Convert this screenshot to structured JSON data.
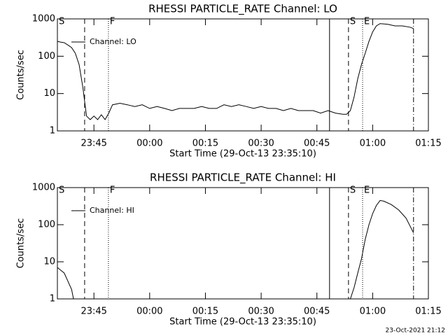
{
  "chart_data": [
    {
      "type": "line",
      "title": "RHESSI PARTICLE_RATE Channel: LO",
      "xlabel": "Start Time (29-Oct-13 23:35:10)",
      "ylabel": "Counts/sec",
      "log_y": true,
      "legend": "upper left",
      "xlim": [
        1415.17,
        1515
      ],
      "ylim": [
        1,
        1000
      ],
      "xticks": [
        {
          "value": 1425,
          "label": "23:45"
        },
        {
          "value": 1440,
          "label": "00:00"
        },
        {
          "value": 1455,
          "label": "00:15"
        },
        {
          "value": 1470,
          "label": "00:30"
        },
        {
          "value": 1485,
          "label": "00:45"
        },
        {
          "value": 1500,
          "label": "01:00"
        },
        {
          "value": 1515,
          "label": "01:15"
        }
      ],
      "yticks": [
        1,
        10,
        100,
        1000
      ],
      "markers": [
        {
          "x": 1415.17,
          "style": "solid",
          "label": "S"
        },
        {
          "x": 1422.5,
          "style": "dashed"
        },
        {
          "x": 1428.9,
          "style": "dotted",
          "label": "F"
        },
        {
          "x": 1488.4,
          "style": "solid"
        },
        {
          "x": 1493.5,
          "style": "dashed",
          "label": "S"
        },
        {
          "x": 1497.3,
          "style": "dotted",
          "label": "E"
        },
        {
          "x": 1511.0,
          "style": "dashdot"
        }
      ],
      "x": [
        1415.2,
        1416,
        1417,
        1418,
        1419,
        1420,
        1421,
        1422,
        1423,
        1424,
        1425,
        1426,
        1427,
        1428,
        1429,
        1430,
        1432,
        1434,
        1436,
        1438,
        1440,
        1442,
        1444,
        1446,
        1448,
        1450,
        1452,
        1454,
        1456,
        1458,
        1460,
        1462,
        1464,
        1466,
        1468,
        1470,
        1472,
        1474,
        1476,
        1478,
        1480,
        1482,
        1484,
        1486,
        1488,
        1490,
        1492,
        1493,
        1494,
        1495,
        1496,
        1497,
        1498,
        1499,
        1500,
        1501,
        1502,
        1504,
        1506,
        1508,
        1510,
        1511
      ],
      "series": [
        {
          "name": "Channel: LO",
          "color": "#000000",
          "values": [
            250,
            240,
            230,
            200,
            170,
            120,
            60,
            15,
            2.5,
            2,
            2.5,
            2,
            2.7,
            2,
            3,
            5,
            5.5,
            5,
            4.5,
            5,
            4,
            4.5,
            4,
            3.5,
            4,
            4,
            4,
            4.5,
            4,
            4,
            5,
            4.5,
            5,
            4.5,
            4,
            4.5,
            4,
            4,
            3.5,
            4,
            3.5,
            3.5,
            3.5,
            3,
            3.5,
            3,
            2.8,
            2.8,
            3.5,
            8,
            25,
            60,
            120,
            250,
            450,
            650,
            750,
            720,
            650,
            650,
            600,
            550
          ]
        }
      ]
    },
    {
      "type": "line",
      "title": "RHESSI PARTICLE_RATE Channel: HI",
      "xlabel": "Start Time (29-Oct-13 23:35:10)",
      "ylabel": "Counts/sec",
      "log_y": true,
      "legend": "upper left",
      "xlim": [
        1415.17,
        1515
      ],
      "ylim": [
        1,
        1000
      ],
      "xticks": [
        {
          "value": 1425,
          "label": "23:45"
        },
        {
          "value": 1440,
          "label": "00:00"
        },
        {
          "value": 1455,
          "label": "00:15"
        },
        {
          "value": 1470,
          "label": "00:30"
        },
        {
          "value": 1485,
          "label": "00:45"
        },
        {
          "value": 1500,
          "label": "01:00"
        },
        {
          "value": 1515,
          "label": "01:15"
        }
      ],
      "yticks": [
        1,
        10,
        100,
        1000
      ],
      "markers": [
        {
          "x": 1415.17,
          "style": "solid",
          "label": "S"
        },
        {
          "x": 1422.5,
          "style": "dashed"
        },
        {
          "x": 1428.9,
          "style": "dotted",
          "label": "F"
        },
        {
          "x": 1488.4,
          "style": "solid"
        },
        {
          "x": 1493.5,
          "style": "dashed",
          "label": "S"
        },
        {
          "x": 1497.3,
          "style": "dotted",
          "label": "E"
        },
        {
          "x": 1511.0,
          "style": "dashdot"
        }
      ],
      "x": [
        1415.2,
        1416,
        1417,
        1418,
        1419,
        1419.5,
        1420,
        1494,
        1495,
        1496,
        1497,
        1498,
        1499,
        1500,
        1501,
        1502,
        1503,
        1505,
        1507,
        1509,
        1511
      ],
      "series": [
        {
          "name": "Channel: HI",
          "color": "#000000",
          "values": [
            7,
            6,
            5,
            3,
            1.8,
            1,
            null,
            1,
            2,
            5,
            12,
            40,
            100,
            200,
            330,
            450,
            430,
            350,
            250,
            150,
            60
          ]
        }
      ]
    }
  ],
  "footer": "23-Oct-2021 21:12"
}
